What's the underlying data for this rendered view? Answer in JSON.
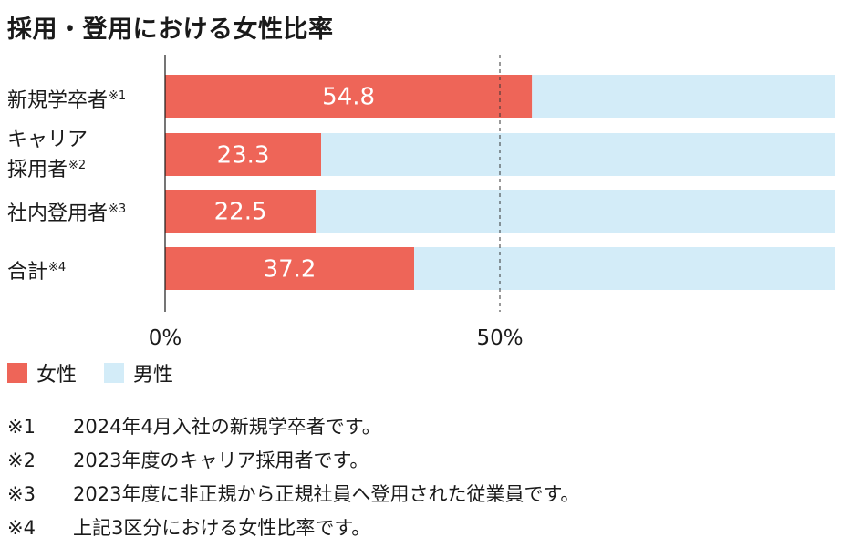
{
  "title": "採用・登用における女性比率",
  "chart_data": {
    "type": "bar",
    "orientation": "horizontal",
    "stacked": true,
    "categories": [
      {
        "line1": "新規学卒者",
        "line2": "",
        "mark": "※1"
      },
      {
        "line1": "キャリア",
        "line2": "採用者",
        "mark": "※2"
      },
      {
        "line1": "社内登用者",
        "line2": "",
        "mark": "※3"
      },
      {
        "line1": "合計",
        "line2": "",
        "mark": "※4"
      }
    ],
    "series": [
      {
        "name": "女性",
        "values": [
          54.8,
          23.3,
          22.5,
          37.2
        ],
        "color": "#ee6558"
      },
      {
        "name": "男性",
        "values": [
          45.2,
          76.7,
          77.5,
          62.8
        ],
        "color": "#d3ecf8"
      }
    ],
    "data_labels": [
      "54.8",
      "23.3",
      "22.5",
      "37.2"
    ],
    "xlim": [
      0,
      100
    ],
    "ticks": [
      {
        "value": 0,
        "label": "0%"
      },
      {
        "value": 50,
        "label": "50%"
      }
    ],
    "reference_line": 50,
    "legend_position": "bottom-left"
  },
  "legend": [
    {
      "label": "女性",
      "color": "#ee6558"
    },
    {
      "label": "男性",
      "color": "#d3ecf8"
    }
  ],
  "notes": [
    {
      "mark": "※1",
      "text": "2024年4月入社の新規学卒者です。"
    },
    {
      "mark": "※2",
      "text": "2023年度のキャリア採用者です。"
    },
    {
      "mark": "※3",
      "text": "2023年度に非正規から正規社員へ登用された従業員です。"
    },
    {
      "mark": "※4",
      "text": "上記3区分における女性比率です。"
    }
  ]
}
